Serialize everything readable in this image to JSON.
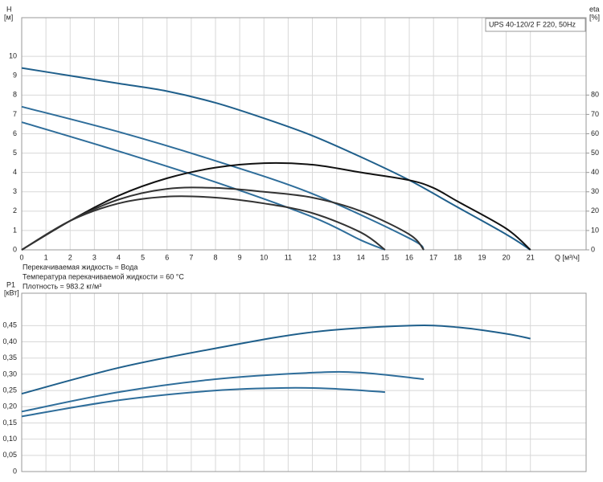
{
  "chart_data": [
    {
      "type": "line",
      "title": "UPS 40-120/2 F 220, 50Hz",
      "ylabel": "H",
      "yunit": "[м]",
      "y2label": "eta",
      "y2unit": "[%]",
      "xlabel": "Q [м³/ч]",
      "annotations": [
        "Перекачиваемая жидкость = Вода",
        "Температура перекачиваемой жидкости = 60 °C",
        "Плотность = 983.2 кг/м³"
      ],
      "xlim": [
        0,
        23.3
      ],
      "xticks": [
        0,
        1,
        2,
        3,
        4,
        5,
        6,
        7,
        8,
        9,
        10,
        11,
        12,
        13,
        14,
        15,
        16,
        17,
        18,
        19,
        20,
        21
      ],
      "ylim": [
        0,
        12
      ],
      "yticks": [
        0,
        1,
        2,
        3,
        4,
        5,
        6,
        7,
        8,
        9,
        10
      ],
      "y2lim": [
        0,
        120
      ],
      "y2ticks": [
        0,
        10,
        20,
        30,
        40,
        50,
        60,
        70,
        80
      ],
      "grid": true,
      "series": [
        {
          "color": "#1f5f8b",
          "x": [
            0,
            2,
            4,
            6,
            8,
            10,
            12,
            14,
            16,
            18,
            20,
            21
          ],
          "values": [
            9.4,
            9.0,
            8.6,
            8.2,
            7.6,
            6.8,
            5.9,
            4.8,
            3.6,
            2.2,
            0.8,
            0
          ]
        },
        {
          "color": "#2e6d9a",
          "x": [
            0,
            4,
            8,
            12,
            16,
            16.6
          ],
          "values": [
            7.4,
            6.1,
            4.6,
            2.9,
            0.6,
            0
          ]
        },
        {
          "color": "#2e6d9a",
          "x": [
            0,
            4,
            8,
            12,
            14,
            15
          ],
          "values": [
            6.6,
            5.1,
            3.5,
            1.7,
            0.5,
            0
          ]
        },
        {
          "color": "#111111",
          "axis": "y2",
          "x": [
            0,
            2,
            4,
            6,
            8,
            10,
            12,
            14,
            16,
            17,
            18,
            20,
            21
          ],
          "values": [
            0,
            15,
            28,
            37,
            42.5,
            44.8,
            44,
            40,
            36,
            32,
            25,
            11,
            0
          ]
        },
        {
          "color": "#333333",
          "axis": "y2",
          "x": [
            0,
            2,
            4,
            6,
            8,
            10,
            12,
            14,
            16,
            16.6
          ],
          "values": [
            0,
            15,
            26,
            31.5,
            32,
            30,
            27,
            20,
            8,
            0
          ]
        },
        {
          "color": "#333333",
          "axis": "y2",
          "x": [
            0,
            2,
            4,
            6,
            8,
            10,
            12,
            14,
            15
          ],
          "values": [
            0,
            15,
            24,
            27.5,
            27,
            24,
            19,
            9,
            0
          ]
        }
      ]
    },
    {
      "type": "line",
      "ylabel": "P1",
      "yunit": "[кВт]",
      "xlim": [
        0,
        23.3
      ],
      "ylim": [
        0,
        0.55
      ],
      "yticks": [
        0,
        {
          "value": 0.05,
          "label": "0,05"
        },
        {
          "value": 0.1,
          "label": "0,10"
        },
        {
          "value": 0.15,
          "label": "0,15"
        },
        {
          "value": 0.2,
          "label": "0,20"
        },
        {
          "value": 0.25,
          "label": "0,25"
        },
        {
          "value": 0.3,
          "label": "0,30"
        },
        {
          "value": 0.35,
          "label": "0,35"
        },
        {
          "value": 0.4,
          "label": "0,40"
        },
        {
          "value": 0.45,
          "label": "0,45"
        }
      ],
      "grid": true,
      "series": [
        {
          "color": "#1f5f8b",
          "x": [
            0,
            4,
            8,
            12,
            16,
            18,
            20,
            21
          ],
          "values": [
            0.24,
            0.32,
            0.38,
            0.43,
            0.45,
            0.445,
            0.425,
            0.41
          ]
        },
        {
          "color": "#2e6d9a",
          "x": [
            0,
            4,
            8,
            12,
            14,
            16.6
          ],
          "values": [
            0.185,
            0.245,
            0.285,
            0.305,
            0.305,
            0.285
          ]
        },
        {
          "color": "#2e6d9a",
          "x": [
            0,
            4,
            8,
            11,
            13,
            15
          ],
          "values": [
            0.17,
            0.22,
            0.25,
            0.258,
            0.255,
            0.245
          ]
        }
      ]
    }
  ]
}
